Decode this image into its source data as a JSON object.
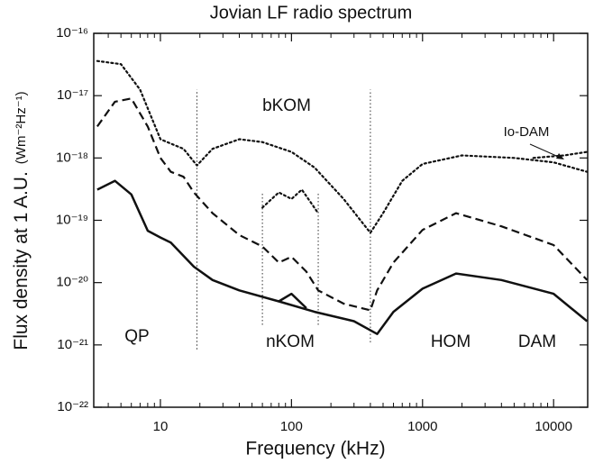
{
  "chart_data": {
    "type": "line",
    "title": "Jovian LF radio spectrum",
    "x_label": "Frequency  (kHz)",
    "y_label": "Flux density at 1 A.U.",
    "y_unit": "(Wm⁻²Hz⁻¹)",
    "log_x": true,
    "log_y": true,
    "xlim": [
      3.1,
      18200
    ],
    "ylim": [
      1e-22,
      1e-16
    ],
    "xticks": [
      10,
      100,
      1000,
      10000
    ],
    "yticks": [
      {
        "value": 1e-22,
        "label": "10⁻²²"
      },
      {
        "value": 1e-21,
        "label": "10⁻²¹"
      },
      {
        "value": 1e-20,
        "label": "10⁻²⁰"
      },
      {
        "value": 1e-19,
        "label": "10⁻¹⁹"
      },
      {
        "value": 1e-18,
        "label": "10⁻¹⁸"
      },
      {
        "value": 1e-17,
        "label": "10⁻¹⁷"
      },
      {
        "value": 1e-16,
        "label": "10⁻¹⁶"
      }
    ],
    "series": [
      {
        "style": "dotted",
        "color": "#111111",
        "x": [
          3.3,
          5,
          7,
          10,
          12,
          15,
          19,
          25,
          40,
          60,
          100,
          150,
          250,
          400,
          500,
          700,
          1000,
          2000,
          5000,
          10000,
          18000
        ],
        "values": [
          3.6e-17,
          3.2e-17,
          1.25e-17,
          2e-18,
          1.7e-18,
          1.4e-18,
          7.6e-19,
          1.4e-18,
          2e-18,
          1.8e-18,
          1.25e-18,
          7e-19,
          2.2e-19,
          6.3e-20,
          1.3e-19,
          4.3e-19,
          8e-19,
          1.1e-18,
          1e-18,
          8.5e-19,
          6e-19
        ]
      },
      {
        "style": "dotted",
        "color": "#111111",
        "x": [
          7000,
          12000,
          18000
        ],
        "values": [
          1e-18,
          1.1e-18,
          1.25e-18
        ]
      },
      {
        "style": "dotted",
        "color": "#111111",
        "x": [
          60,
          80,
          100,
          120,
          160
        ],
        "values": [
          1.6e-19,
          2.8e-19,
          2.2e-19,
          3.1e-19,
          1.3e-19
        ]
      },
      {
        "style": "dashed",
        "color": "#111111",
        "x": [
          3.3,
          4.5,
          6,
          8,
          10,
          12,
          15,
          18,
          25,
          40,
          60,
          80,
          100,
          130,
          160,
          250,
          400,
          450,
          600,
          1000,
          1800,
          4000,
          10000,
          18000
        ],
        "values": [
          3.2e-18,
          8e-18,
          9e-18,
          3.2e-18,
          1e-18,
          6e-19,
          5e-19,
          2.8e-19,
          1.3e-19,
          5.8e-20,
          3.8e-20,
          2.1e-20,
          2.6e-20,
          1.5e-20,
          7.5e-21,
          4.6e-21,
          3.6e-21,
          7.5e-21,
          2.1e-20,
          7e-20,
          1.3e-19,
          8e-20,
          4e-20,
          1.1e-20
        ]
      },
      {
        "style": "solid",
        "color": "#111111",
        "x": [
          3.3,
          4.5,
          6,
          8,
          10,
          12,
          18,
          25,
          40,
          80,
          150,
          300,
          450,
          600,
          1000,
          1800,
          4000,
          10000,
          18000
        ],
        "values": [
          3.1e-19,
          4.3e-19,
          2.6e-19,
          6.8e-20,
          5.3e-20,
          4.4e-20,
          1.8e-20,
          1.1e-20,
          7.5e-21,
          5e-21,
          3.4e-21,
          2.4e-21,
          1.5e-21,
          3.4e-21,
          8e-21,
          1.4e-20,
          1.1e-20,
          6.6e-21,
          2.4e-21
        ]
      },
      {
        "style": "solid",
        "color": "#111111",
        "x": [
          80,
          100,
          130
        ],
        "values": [
          5e-21,
          6.6e-21,
          3.9e-21
        ]
      }
    ],
    "boundaries": [
      {
        "x": 19,
        "from": 8.5e-22,
        "to": 1.25e-17
      },
      {
        "x": 60,
        "from": 2.1e-21,
        "to": 2.8e-19
      },
      {
        "x": 160,
        "from": 2.1e-21,
        "to": 2.8e-19
      },
      {
        "x": 400,
        "from": 1.1e-21,
        "to": 1.25e-17
      }
    ],
    "annotations": [
      "QP",
      "bKOM",
      "nKOM",
      "HOM",
      "DAM",
      "Io-DAM"
    ]
  }
}
